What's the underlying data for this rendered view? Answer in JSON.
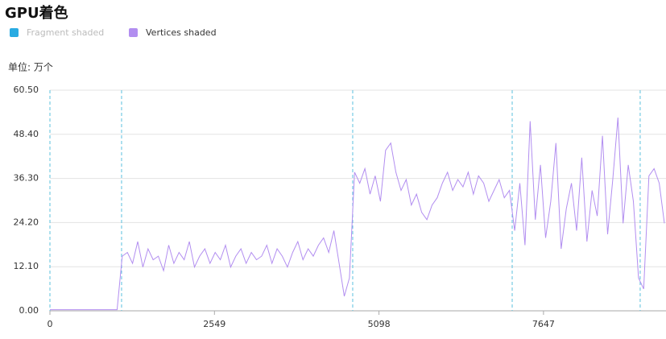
{
  "chart_data": {
    "type": "line",
    "title": "GPU着色",
    "y_label": "单位: 万个",
    "x": [
      0,
      80,
      160,
      240,
      320,
      400,
      480,
      560,
      640,
      720,
      800,
      880,
      960,
      1040,
      1120,
      1200,
      1280,
      1360,
      1440,
      1520,
      1600,
      1680,
      1760,
      1840,
      1920,
      2000,
      2080,
      2160,
      2240,
      2320,
      2400,
      2480,
      2560,
      2640,
      2720,
      2800,
      2880,
      2960,
      3040,
      3120,
      3200,
      3280,
      3360,
      3440,
      3520,
      3600,
      3680,
      3760,
      3840,
      3920,
      4000,
      4080,
      4160,
      4240,
      4320,
      4400,
      4480,
      4560,
      4640,
      4720,
      4800,
      4880,
      4960,
      5040,
      5120,
      5200,
      5280,
      5360,
      5440,
      5520,
      5600,
      5680,
      5760,
      5840,
      5920,
      6000,
      6080,
      6160,
      6240,
      6320,
      6400,
      6480,
      6560,
      6640,
      6720,
      6800,
      6880,
      6960,
      7040,
      7120,
      7200,
      7280,
      7360,
      7440,
      7520,
      7600,
      7680,
      7760,
      7840,
      7920,
      8000,
      8080,
      8160,
      8240,
      8320,
      8400,
      8480,
      8560,
      8640,
      8720,
      8800,
      8880,
      8960,
      9040,
      9120,
      9200,
      9280,
      9360,
      9440,
      9520
    ],
    "series": [
      {
        "name": "Fragment shaded",
        "color": "#29abe2",
        "hidden": true
      },
      {
        "name": "Vertices shaded",
        "color": "#b28ef0",
        "values": [
          0.3,
          0.3,
          0.3,
          0.3,
          0.3,
          0.3,
          0.3,
          0.3,
          0.3,
          0.3,
          0.3,
          0.3,
          0.3,
          0.3,
          15,
          16,
          13,
          19,
          12,
          17,
          14,
          15,
          11,
          18,
          13,
          16,
          14,
          19,
          12,
          15,
          17,
          13,
          16,
          14,
          18,
          12,
          15,
          17,
          13,
          16,
          14,
          15,
          18,
          13,
          17,
          15,
          12,
          16,
          19,
          14,
          17,
          15,
          18,
          20,
          16,
          22,
          13,
          4,
          9,
          38,
          35,
          39,
          32,
          37,
          30,
          44,
          46,
          38,
          33,
          36,
          29,
          32,
          27,
          25,
          29,
          31,
          35,
          38,
          33,
          36,
          34,
          38,
          32,
          37,
          35,
          30,
          33,
          36,
          31,
          33,
          22,
          35,
          18,
          52,
          25,
          40,
          20,
          30,
          46,
          17,
          28,
          35,
          22,
          42,
          19,
          33,
          26,
          48,
          21,
          36,
          53,
          24,
          40,
          30,
          9,
          6,
          37,
          39,
          35,
          24
        ]
      }
    ],
    "xlim": [
      0,
      9545
    ],
    "xticks": [
      0,
      2549,
      5098,
      7647
    ],
    "ylim": [
      0,
      60.5
    ],
    "yticks": [
      {
        "value": 0,
        "label": "0.00"
      },
      {
        "value": 12.1,
        "label": "12.10"
      },
      {
        "value": 24.2,
        "label": "24.20"
      },
      {
        "value": 36.3,
        "label": "36.30"
      },
      {
        "value": 48.4,
        "label": "48.40"
      },
      {
        "value": 60.5,
        "label": "60.50"
      }
    ],
    "grid": true,
    "vlines": [
      0,
      1110,
      4691,
      7162,
      9145
    ],
    "vline_color": "#5bc0de"
  }
}
